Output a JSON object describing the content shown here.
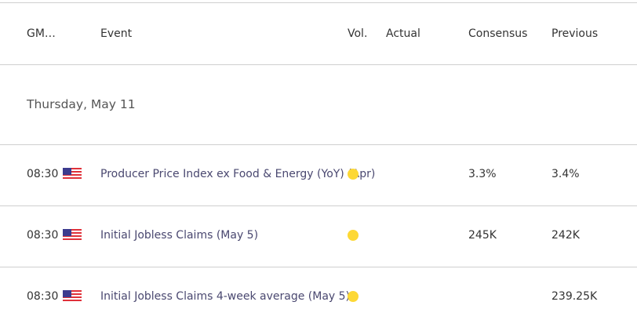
{
  "header": {
    "gmt": "GM…",
    "event": "Event",
    "vol": "Vol.",
    "actual": "Actual",
    "consensus": "Consensus",
    "previous": "Previous"
  },
  "date": "Thursday, May 11",
  "colors": {
    "volatility_dot": "#fdd835"
  },
  "rows": [
    {
      "time": "08:30",
      "country": "us-flag-icon",
      "event": "Producer Price Index ex Food & Energy (YoY) (Apr)",
      "volatility": "low",
      "actual": "",
      "consensus": "3.3%",
      "previous": "3.4%"
    },
    {
      "time": "08:30",
      "country": "us-flag-icon",
      "event": "Initial Jobless Claims (May 5)",
      "volatility": "low",
      "actual": "",
      "consensus": "245K",
      "previous": "242K"
    },
    {
      "time": "08:30",
      "country": "us-flag-icon",
      "event": "Initial Jobless Claims 4-week average (May 5)",
      "volatility": "low",
      "actual": "",
      "consensus": "",
      "previous": "239.25K"
    }
  ]
}
